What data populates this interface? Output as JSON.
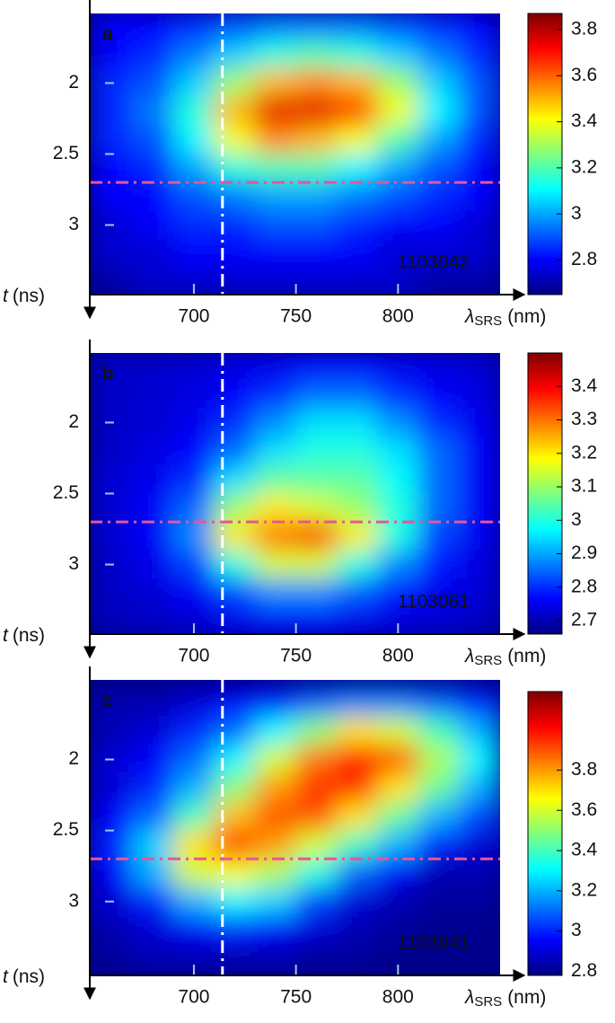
{
  "chart_data": [
    {
      "type": "heatmap",
      "annotation": "a",
      "id_label": "1103042",
      "x_label": "λ",
      "x_label_sub": "SRS",
      "x_label_unit": "(nm)",
      "y_label": "t",
      "y_label_unit": "(ns)",
      "xlim": [
        649,
        850
      ],
      "ylim": [
        1.51,
        3.49
      ],
      "y_inverted": true,
      "xticks": [
        700,
        750,
        800
      ],
      "yticks": [
        2,
        2.5,
        3
      ],
      "colormap": "jet",
      "clim": [
        2.65,
        3.87
      ],
      "cticks": [
        2.8,
        3,
        3.2,
        3.4,
        3.6,
        3.8
      ],
      "vline": 714,
      "vline_color": "#ffffff",
      "hline": 2.7,
      "hline_color": "#e8559a",
      "x": [
        660,
        680,
        700,
        720,
        740,
        760,
        780,
        800,
        820,
        840
      ],
      "y": [
        1.6,
        1.8,
        2.0,
        2.2,
        2.4,
        2.6,
        2.8,
        3.0,
        3.2,
        3.4
      ],
      "values": [
        [
          2.8,
          2.8,
          2.85,
          2.9,
          2.95,
          2.95,
          2.95,
          2.9,
          2.85,
          2.8
        ],
        [
          2.8,
          2.85,
          2.95,
          3.05,
          3.15,
          3.2,
          3.15,
          3.05,
          2.95,
          2.85
        ],
        [
          2.85,
          2.9,
          3.05,
          3.3,
          3.5,
          3.55,
          3.5,
          3.3,
          3.05,
          2.9
        ],
        [
          2.85,
          2.95,
          3.15,
          3.5,
          3.75,
          3.75,
          3.65,
          3.4,
          3.1,
          2.9
        ],
        [
          2.85,
          2.9,
          3.1,
          3.4,
          3.55,
          3.5,
          3.4,
          3.2,
          3.0,
          2.85
        ],
        [
          2.8,
          2.85,
          3.0,
          3.15,
          3.2,
          3.2,
          3.1,
          3.0,
          2.9,
          2.8
        ],
        [
          2.8,
          2.8,
          2.9,
          2.95,
          3.0,
          3.0,
          2.95,
          2.9,
          2.85,
          2.8
        ],
        [
          2.75,
          2.8,
          2.85,
          2.85,
          2.9,
          2.9,
          2.85,
          2.8,
          2.8,
          2.75
        ],
        [
          2.75,
          2.75,
          2.8,
          2.8,
          2.8,
          2.8,
          2.8,
          2.75,
          2.75,
          2.75
        ],
        [
          2.7,
          2.75,
          2.75,
          2.75,
          2.75,
          2.75,
          2.75,
          2.75,
          2.7,
          2.7
        ]
      ]
    },
    {
      "type": "heatmap",
      "annotation": "b",
      "id_label": "1103061",
      "x_label": "λ",
      "x_label_sub": "SRS",
      "x_label_unit": "(nm)",
      "y_label": "t",
      "y_label_unit": "(ns)",
      "xlim": [
        649,
        850
      ],
      "ylim": [
        1.51,
        3.49
      ],
      "y_inverted": true,
      "xticks": [
        700,
        750,
        800
      ],
      "yticks": [
        2,
        2.5,
        3
      ],
      "colormap": "jet",
      "clim": [
        2.66,
        3.5
      ],
      "cticks": [
        2.7,
        2.8,
        2.9,
        3,
        3.1,
        3.2,
        3.3,
        3.4
      ],
      "vline": 714,
      "vline_color": "#ffffff",
      "hline": 2.7,
      "hline_color": "#e8559a",
      "x": [
        660,
        680,
        700,
        720,
        740,
        760,
        780,
        800,
        820,
        840
      ],
      "y": [
        1.6,
        1.8,
        2.0,
        2.2,
        2.4,
        2.6,
        2.8,
        3.0,
        3.2,
        3.4
      ],
      "values": [
        [
          2.72,
          2.72,
          2.73,
          2.74,
          2.75,
          2.76,
          2.76,
          2.75,
          2.74,
          2.73
        ],
        [
          2.72,
          2.73,
          2.74,
          2.76,
          2.8,
          2.85,
          2.85,
          2.8,
          2.76,
          2.74
        ],
        [
          2.72,
          2.73,
          2.75,
          2.8,
          2.88,
          2.95,
          2.95,
          2.88,
          2.8,
          2.75
        ],
        [
          2.72,
          2.74,
          2.77,
          2.85,
          2.95,
          3.0,
          3.0,
          2.95,
          2.85,
          2.76
        ],
        [
          2.73,
          2.75,
          2.8,
          2.95,
          3.05,
          3.05,
          3.05,
          2.98,
          2.85,
          2.76
        ],
        [
          2.73,
          2.76,
          2.85,
          3.1,
          3.2,
          3.15,
          3.1,
          3.0,
          2.85,
          2.76
        ],
        [
          2.73,
          2.76,
          2.88,
          3.2,
          3.3,
          3.35,
          3.2,
          3.0,
          2.82,
          2.75
        ],
        [
          2.72,
          2.75,
          2.82,
          3.0,
          3.15,
          3.15,
          3.0,
          2.88,
          2.78,
          2.74
        ],
        [
          2.72,
          2.73,
          2.76,
          2.82,
          2.88,
          2.88,
          2.84,
          2.78,
          2.75,
          2.73
        ],
        [
          2.71,
          2.72,
          2.73,
          2.75,
          2.76,
          2.76,
          2.75,
          2.74,
          2.73,
          2.72
        ]
      ]
    },
    {
      "type": "heatmap",
      "annotation": "c",
      "id_label": "1103041",
      "x_label": "λ",
      "x_label_sub": "SRS",
      "x_label_unit": "(nm)",
      "y_label": "t",
      "y_label_unit": "(ns)",
      "xlim": [
        649,
        850
      ],
      "ylim": [
        1.44,
        3.52
      ],
      "y_inverted": true,
      "xticks": [
        700,
        750,
        800
      ],
      "yticks": [
        2,
        2.5,
        3
      ],
      "colormap": "jet",
      "clim": [
        2.78,
        4.19
      ],
      "cticks": [
        2.8,
        3,
        3.2,
        3.4,
        3.6,
        3.8
      ],
      "vline": 714,
      "vline_color": "#ffffff",
      "hline": 2.7,
      "hline_color": "#e8559a",
      "x": [
        660,
        680,
        700,
        720,
        740,
        760,
        780,
        800,
        820,
        840
      ],
      "y": [
        1.6,
        1.8,
        2.0,
        2.2,
        2.4,
        2.6,
        2.8,
        3.0,
        3.2,
        3.4
      ],
      "values": [
        [
          2.85,
          2.85,
          2.9,
          2.95,
          3.0,
          3.1,
          3.15,
          3.15,
          3.1,
          3.0
        ],
        [
          2.85,
          2.9,
          3.0,
          3.1,
          3.3,
          3.5,
          3.7,
          3.6,
          3.4,
          3.2
        ],
        [
          2.9,
          2.95,
          3.1,
          3.3,
          3.6,
          3.85,
          4.0,
          3.9,
          3.55,
          3.3
        ],
        [
          2.9,
          3.0,
          3.2,
          3.5,
          3.8,
          3.95,
          3.95,
          3.7,
          3.45,
          3.2
        ],
        [
          2.95,
          3.1,
          3.4,
          3.75,
          3.9,
          3.9,
          3.7,
          3.45,
          3.2,
          3.05
        ],
        [
          3.0,
          3.25,
          3.7,
          3.95,
          3.8,
          3.6,
          3.4,
          3.2,
          3.0,
          2.9
        ],
        [
          2.95,
          3.2,
          3.6,
          3.65,
          3.55,
          3.35,
          3.1,
          2.95,
          2.85,
          2.85
        ],
        [
          2.9,
          3.0,
          3.2,
          3.3,
          3.25,
          3.05,
          2.9,
          2.85,
          2.82,
          2.82
        ],
        [
          2.85,
          2.9,
          2.95,
          3.0,
          2.95,
          2.9,
          2.85,
          2.82,
          2.8,
          2.8
        ],
        [
          2.82,
          2.85,
          2.85,
          2.85,
          2.85,
          2.82,
          2.82,
          2.8,
          2.8,
          2.8
        ]
      ]
    }
  ]
}
